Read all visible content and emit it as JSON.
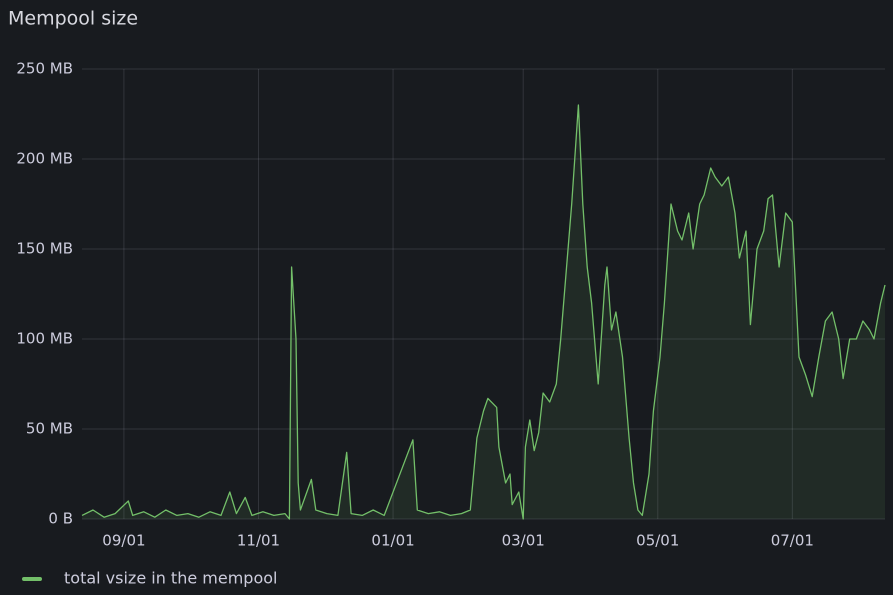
{
  "chart_data": {
    "type": "line",
    "title": "Mempool size",
    "x": [
      "08/13",
      "08/18",
      "08/23",
      "08/28",
      "09/03",
      "09/05",
      "09/10",
      "09/15",
      "09/20",
      "09/25",
      "09/30",
      "10/05",
      "10/10",
      "10/15",
      "10/19",
      "10/22",
      "10/26",
      "10/29",
      "11/03",
      "11/08",
      "11/13",
      "11/15",
      "11/16",
      "11/18",
      "11/19",
      "11/20",
      "11/25",
      "11/27",
      "12/02",
      "12/07",
      "12/11",
      "12/13",
      "12/18",
      "12/23",
      "12/28",
      "01/10",
      "01/12",
      "01/17",
      "01/22",
      "01/27",
      "02/01",
      "02/05",
      "02/08",
      "02/11",
      "02/13",
      "02/17",
      "02/18",
      "02/21",
      "02/23",
      "02/24",
      "02/27",
      "03/01",
      "03/02",
      "03/04",
      "03/06",
      "03/08",
      "03/10",
      "03/13",
      "03/16",
      "03/18",
      "03/21",
      "03/23",
      "03/26",
      "03/28",
      "03/30",
      "04/01",
      "04/04",
      "04/07",
      "04/08",
      "04/10",
      "04/12",
      "04/15",
      "04/18",
      "04/20",
      "04/22",
      "04/24",
      "04/27",
      "04/29",
      "05/02",
      "05/04",
      "05/07",
      "05/10",
      "05/12",
      "05/15",
      "05/17",
      "05/20",
      "05/22",
      "05/25",
      "05/27",
      "05/30",
      "06/02",
      "06/05",
      "06/07",
      "06/10",
      "06/12",
      "06/15",
      "06/18",
      "06/20",
      "06/22",
      "06/25",
      "06/28",
      "07/01",
      "07/04",
      "07/07",
      "07/10",
      "07/13",
      "07/16",
      "07/19",
      "07/22",
      "07/24",
      "07/27",
      "07/30",
      "08/02",
      "08/05",
      "08/07",
      "08/10",
      "08/12"
    ],
    "series": [
      {
        "name": "total vsize in the mempool",
        "color": "#73bf69",
        "values": [
          2,
          5,
          1,
          3,
          10,
          2,
          4,
          1,
          5,
          2,
          3,
          1,
          4,
          2,
          15,
          3,
          12,
          2,
          4,
          2,
          3,
          0,
          140,
          100,
          20,
          5,
          22,
          5,
          3,
          2,
          37,
          3,
          2,
          5,
          2,
          44,
          5,
          3,
          4,
          2,
          3,
          5,
          45,
          60,
          67,
          62,
          40,
          20,
          25,
          8,
          15,
          0,
          40,
          55,
          38,
          48,
          70,
          65,
          75,
          100,
          145,
          175,
          230,
          175,
          140,
          120,
          75,
          130,
          140,
          105,
          115,
          90,
          45,
          20,
          5,
          2,
          25,
          60,
          90,
          120,
          175,
          160,
          155,
          170,
          150,
          175,
          180,
          195,
          190,
          185,
          190,
          170,
          145,
          160,
          108,
          150,
          160,
          178,
          180,
          140,
          170,
          165,
          90,
          80,
          68,
          90,
          110,
          115,
          100,
          78,
          100,
          100,
          110,
          105,
          100,
          120,
          130
        ]
      }
    ],
    "xlim": [
      "08/13",
      "08/12"
    ],
    "xticks": [
      "09/01",
      "11/01",
      "01/01",
      "03/01",
      "05/01",
      "07/01"
    ],
    "ylim": [
      0,
      250
    ],
    "yticks": [
      {
        "value": 0,
        "label": "0 B"
      },
      {
        "value": 50,
        "label": "50 MB"
      },
      {
        "value": 100,
        "label": "100 MB"
      },
      {
        "value": 150,
        "label": "150 MB"
      },
      {
        "value": 200,
        "label": "200 MB"
      },
      {
        "value": 250,
        "label": "250 MB"
      }
    ],
    "grid": true
  }
}
